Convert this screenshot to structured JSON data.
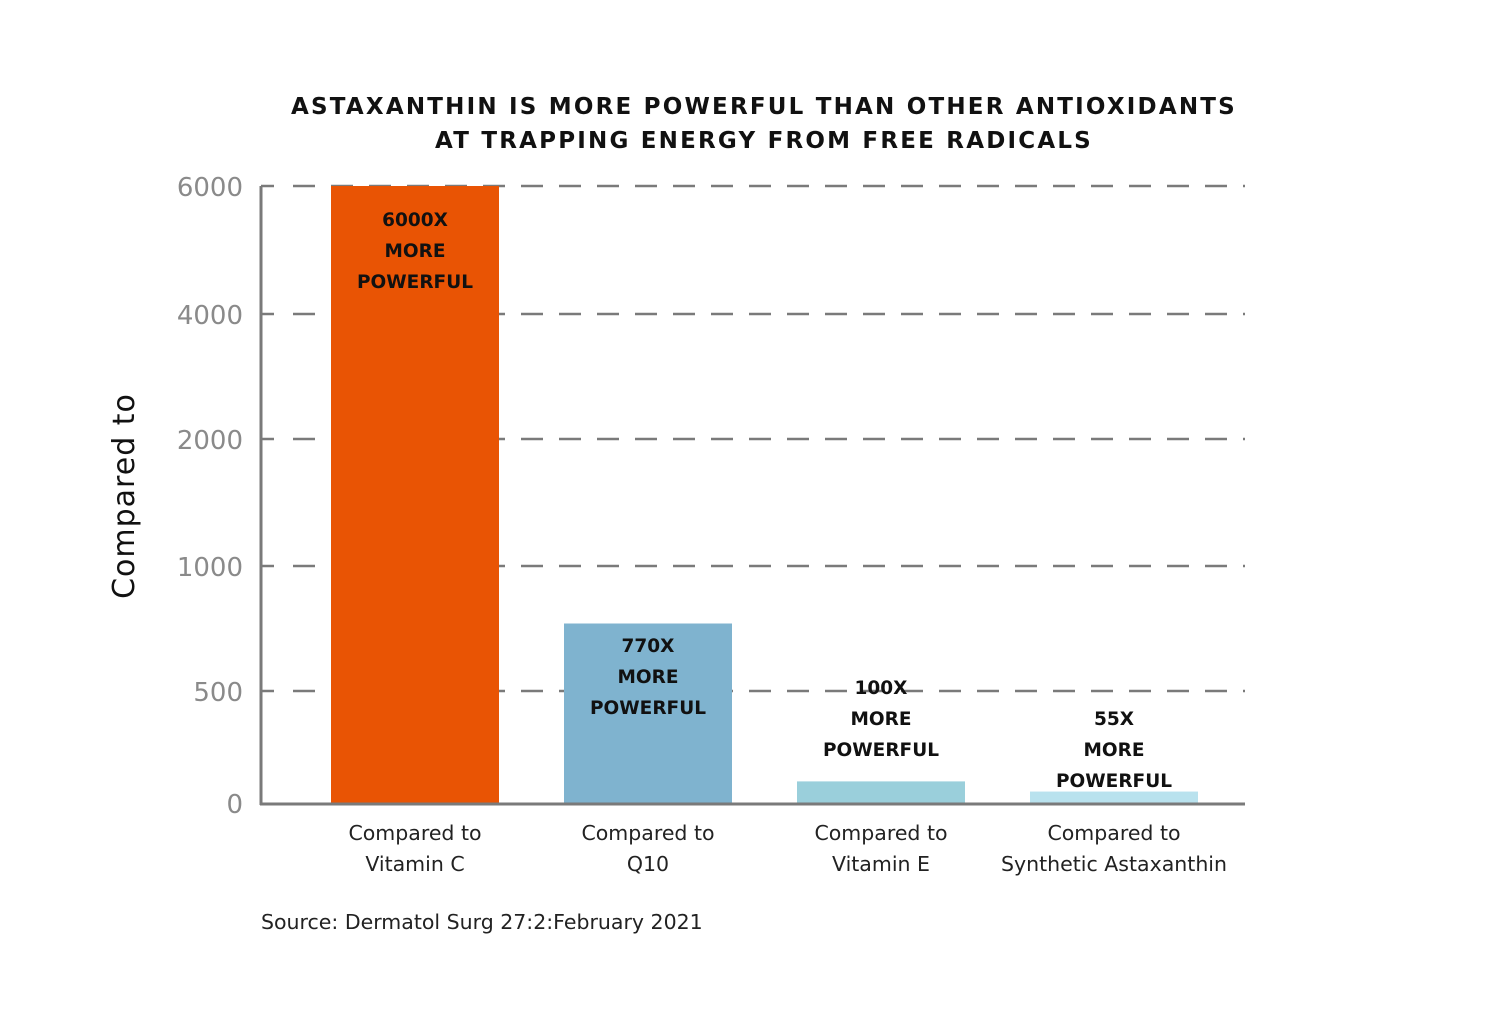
{
  "chart_data": {
    "type": "bar",
    "title": [
      "ASTAXANTHIN IS MORE POWERFUL THAN OTHER ANTIOXIDANTS",
      "AT TRAPPING ENERGY FROM FREE RADICALS"
    ],
    "ylabel": "Compared to",
    "xlabel": "",
    "y_ticks": [
      "6000",
      "4000",
      "2000",
      "1000",
      "500",
      "0"
    ],
    "y_tick_values": [
      6000,
      4000,
      2000,
      1000,
      500,
      0
    ],
    "grid": "dashed",
    "categories": [
      [
        "Compared to",
        "Vitamin C"
      ],
      [
        "Compared to",
        "Q10"
      ],
      [
        "Compared to",
        "Vitamin E"
      ],
      [
        "Compared to",
        "Synthetic Astaxanthin"
      ]
    ],
    "values": [
      6000,
      770,
      100,
      55
    ],
    "data_labels": [
      [
        "6000X",
        "MORE",
        "POWERFUL"
      ],
      [
        "770X",
        "MORE",
        "POWERFUL"
      ],
      [
        "100X",
        "MORE",
        "POWERFUL"
      ],
      [
        "55X",
        "MORE",
        "POWERFUL"
      ]
    ],
    "colors": [
      "#e95404",
      "#7fb3cf",
      "#9acfdb",
      "#b9e2ee"
    ],
    "source": "Source: Dermatol Surg 27:2:February 2021"
  }
}
